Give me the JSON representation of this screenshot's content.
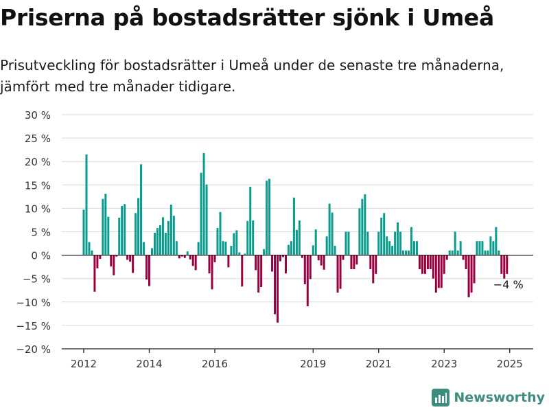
{
  "header": {
    "title": "Priserna på bostadsrätter sjönk i Umeå",
    "subtitle": "Prisutveckling för bostadsrätter i Umeå under de senaste tre månaderna, jämfört med tre månader tidigare."
  },
  "brand": {
    "name": "Newsworthy",
    "icon": "newsworthy-logo-icon",
    "color": "#3d8c7e"
  },
  "chart_data": {
    "type": "bar",
    "title": "",
    "xlabel": "",
    "ylabel": "",
    "unit": "%",
    "ylim": [
      -20,
      30
    ],
    "yticks": [
      30,
      25,
      20,
      15,
      10,
      5,
      0,
      -5,
      -10,
      -15,
      -20
    ],
    "ytick_labels": [
      "30 %",
      "25 %",
      "20 %",
      "15 %",
      "10 %",
      "5 %",
      "0 %",
      "−5 %",
      "−10 %",
      "−15 %",
      "−20 %"
    ],
    "xticks": [
      2012,
      2014,
      2016,
      2019,
      2021,
      2023,
      2025
    ],
    "start": "2012-01",
    "grid": true,
    "colors": {
      "positive": "#0a9b8e",
      "negative": "#990040",
      "grid": "#d9d9d9",
      "axis": "#222222"
    },
    "annotation": {
      "text": "−4 %",
      "target": "last"
    },
    "values": [
      9.7,
      21.5,
      2.8,
      1.0,
      -7.8,
      -2.8,
      -0.8,
      12.0,
      13.1,
      8.2,
      -2.4,
      -4.3,
      -0.3,
      8.0,
      10.5,
      10.9,
      -1.0,
      -1.4,
      -3.8,
      9.0,
      12.2,
      19.4,
      2.8,
      -5.2,
      -6.6,
      1.5,
      4.8,
      5.8,
      6.4,
      8.1,
      4.8,
      7.3,
      10.8,
      8.4,
      3.0,
      -0.7,
      -0.3,
      -0.6,
      0.8,
      -0.9,
      -2.3,
      -3.2,
      2.8,
      17.6,
      21.8,
      15.1,
      -3.9,
      -7.3,
      -1.5,
      5.8,
      9.2,
      3.0,
      2.9,
      -2.6,
      2.0,
      4.7,
      5.3,
      0.6,
      -6.7,
      0.3,
      7.3,
      14.6,
      7.4,
      -3.2,
      -8.0,
      -6.8,
      1.3,
      15.9,
      16.3,
      -3.5,
      -12.6,
      -14.4,
      -1.3,
      -0.4,
      -3.9,
      2.2,
      3.0,
      12.3,
      5.4,
      7.4,
      -0.6,
      -6.2,
      -10.9,
      -5.1,
      2.1,
      5.5,
      -1.1,
      -2.2,
      -3.1,
      4.0,
      11.0,
      9.1,
      2.0,
      -8.0,
      -7.2,
      -1.0,
      5.0,
      5.0,
      -3.0,
      -3.0,
      -2.0,
      10.0,
      12.0,
      13.0,
      5.0,
      -3.0,
      -6.0,
      -4.0,
      5.0,
      8.0,
      9.0,
      4.0,
      3.0,
      2.0,
      5.0,
      7.0,
      5.0,
      1.0,
      1.0,
      1.0,
      6.0,
      3.0,
      3.0,
      -3.0,
      -4.0,
      -4.0,
      -3.0,
      -3.0,
      -5.0,
      -8.0,
      -7.0,
      -7.0,
      -4.0,
      -1.0,
      1.0,
      1.0,
      5.0,
      1.0,
      3.0,
      -1.0,
      -3.0,
      -9.0,
      -8.0,
      -6.0,
      3.0,
      3.0,
      3.0,
      1.0,
      1.0,
      4.0,
      3.0,
      6.0,
      1.0,
      -4.0,
      -5.0,
      -4.0
    ]
  }
}
